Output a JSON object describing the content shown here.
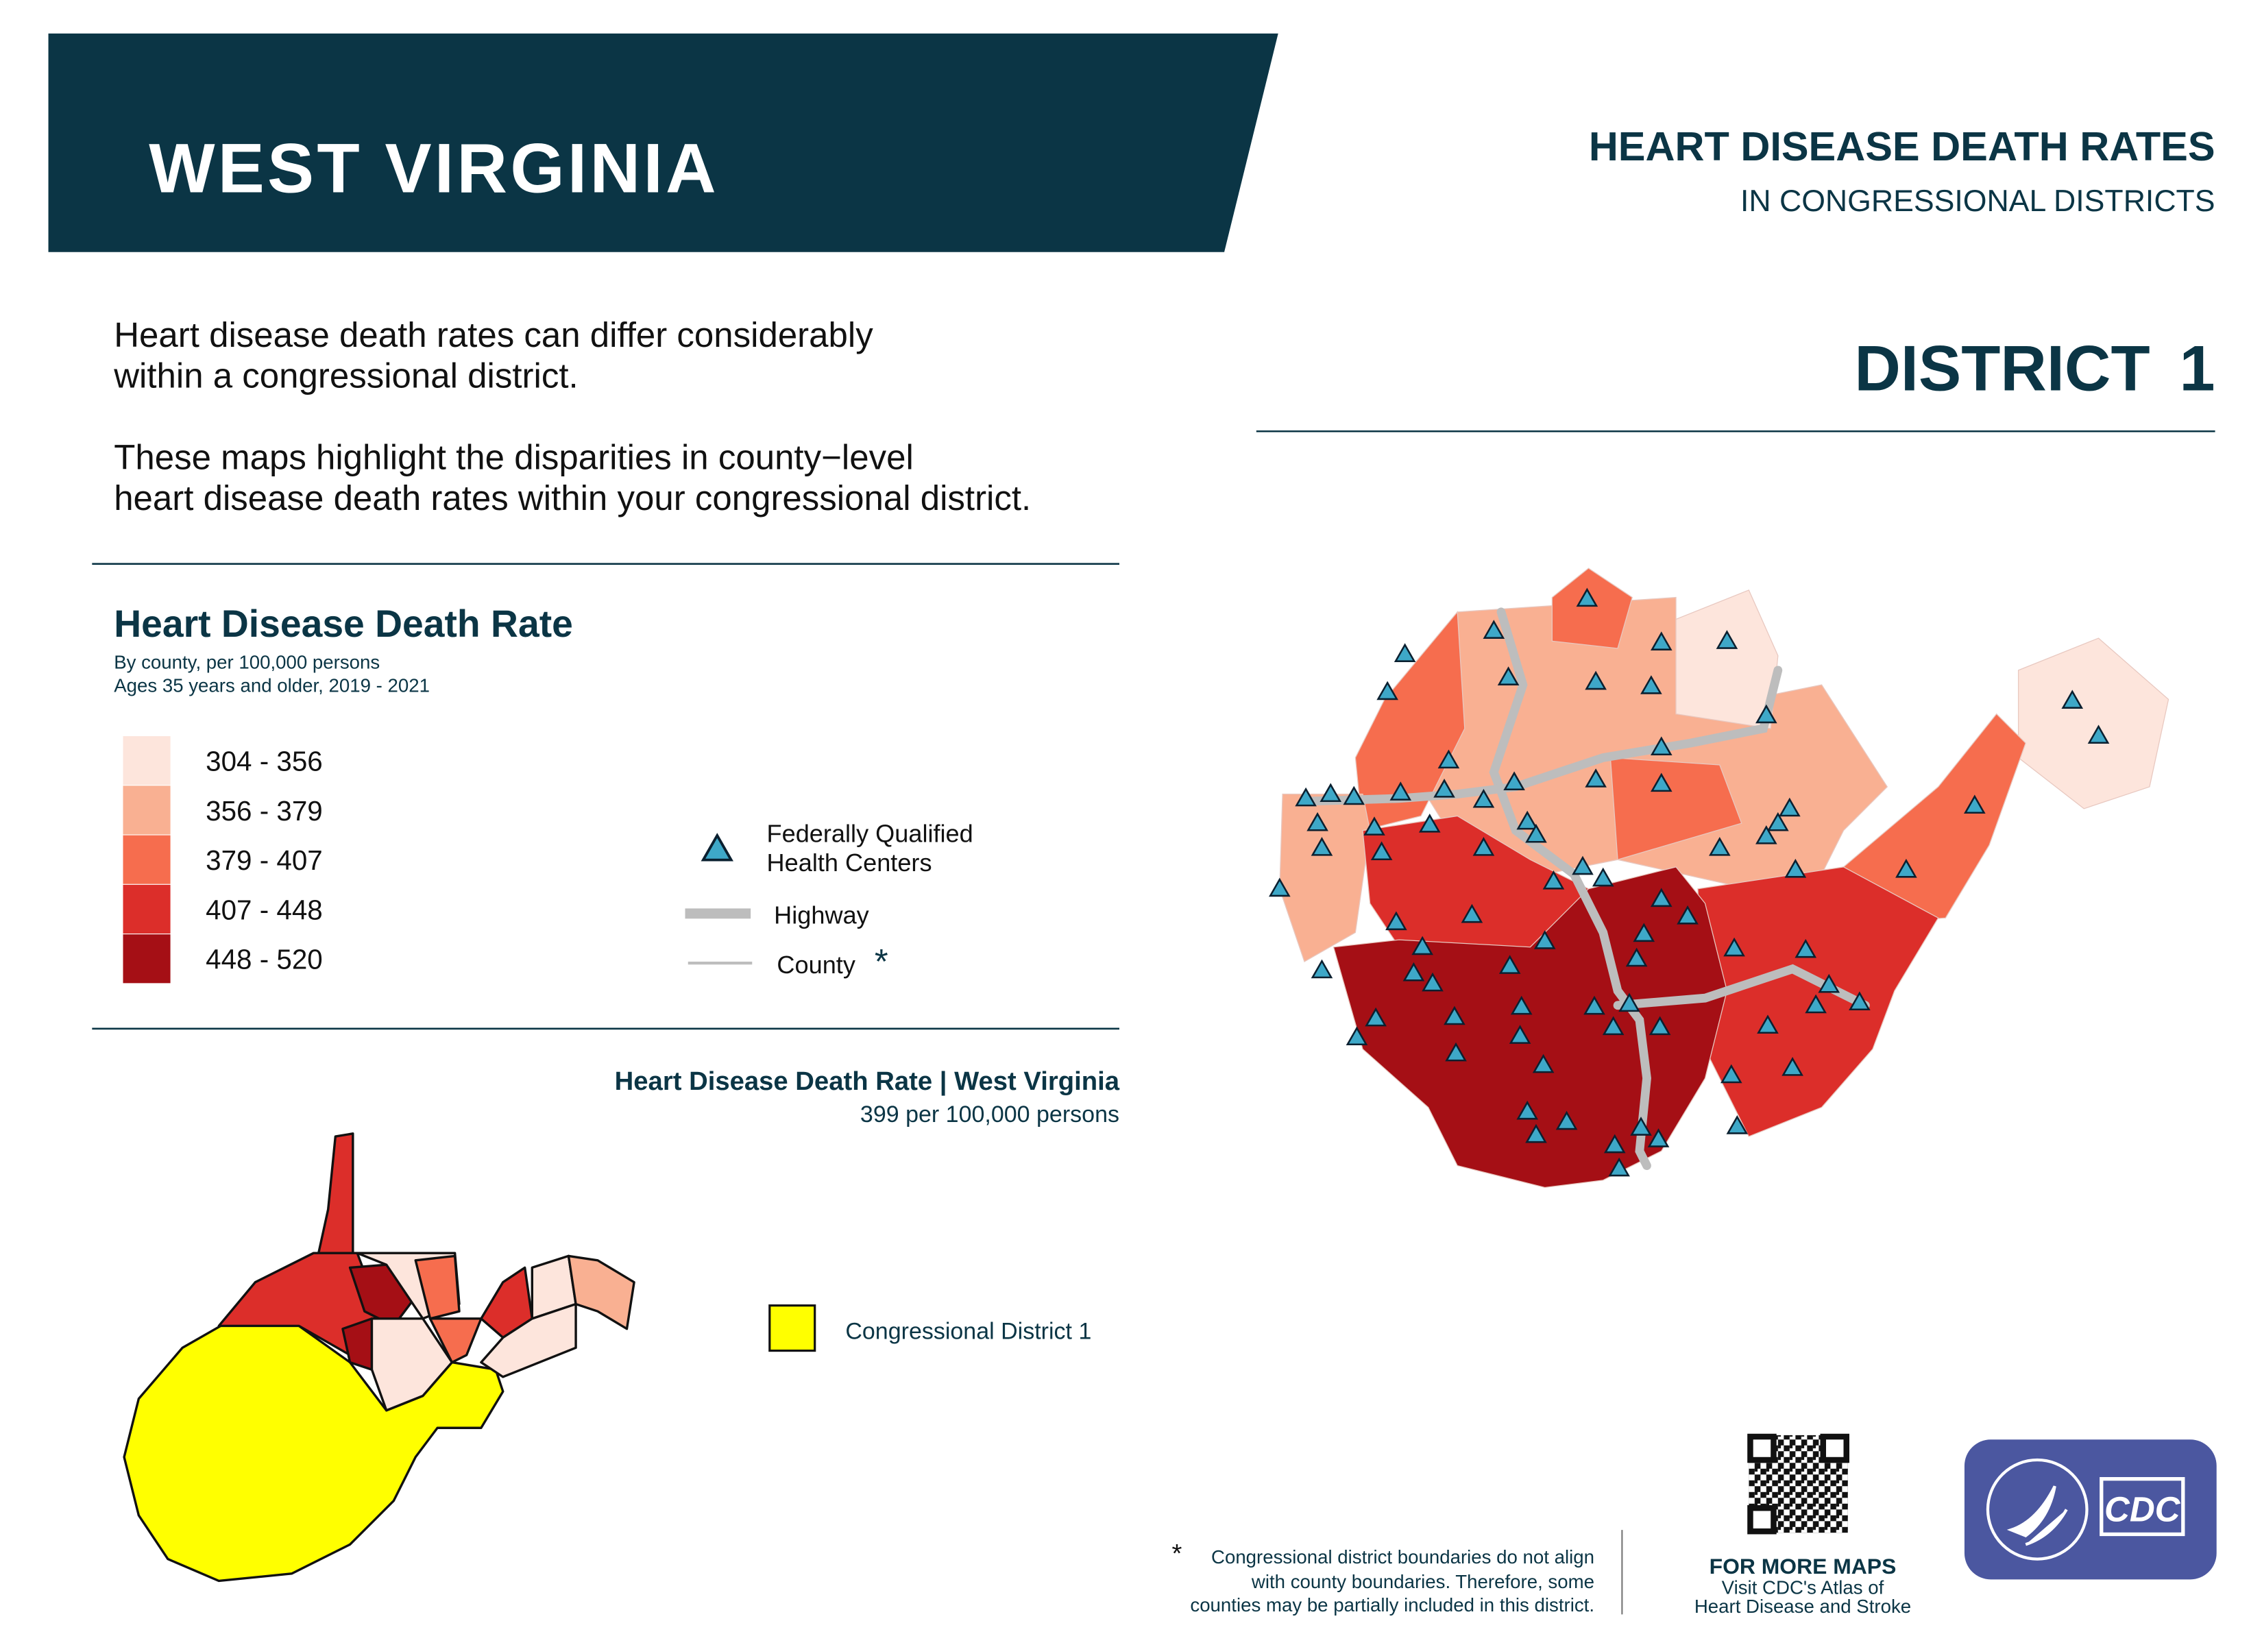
{
  "header": {
    "state": "WEST VIRGINIA",
    "title": "HEART DISEASE DEATH RATES",
    "subtitle": "IN CONGRESSIONAL DISTRICTS",
    "district": "DISTRICT 1"
  },
  "intro": {
    "paragraphs": [
      [
        "Heart disease death rates can differ considerably",
        "within a congressional district."
      ],
      [
        "These maps highlight the disparities in county−level",
        "heart disease death rates within your congressional district."
      ]
    ]
  },
  "legend": {
    "title": "Heart Disease Death Rate",
    "subtitle": [
      "By county, per 100,000 persons",
      "Ages 35 years and older, 2019 - 2021"
    ],
    "classes": [
      {
        "label": "304 - 356",
        "color": "#fde5dc"
      },
      {
        "label": "356 - 379",
        "color": "#f9b092"
      },
      {
        "label": "379 - 407",
        "color": "#f66d4e"
      },
      {
        "label": "407 - 448",
        "color": "#dc2e2a"
      },
      {
        "label": "448 - 520",
        "color": "#a50f15"
      }
    ],
    "symbols": {
      "health_centers": [
        "Federally Qualified",
        "Health Centers"
      ],
      "highway": "Highway",
      "county": "County",
      "county_note": "*"
    }
  },
  "state_summary": {
    "title": "Heart Disease Death Rate | West Virginia",
    "value": "399 per 100,000 persons"
  },
  "inset_legend": "Congressional District 1",
  "footnote": {
    "mark": "*",
    "lines": [
      "Congressional district boundaries do not align",
      "with county boundaries. Therefore, some",
      "counties may be partially included in this district."
    ]
  },
  "more_maps": {
    "title": "FOR MORE MAPS",
    "lines": [
      "Visit CDC's Atlas of",
      "Heart Disease and Stroke"
    ]
  },
  "logo": "CDC"
}
